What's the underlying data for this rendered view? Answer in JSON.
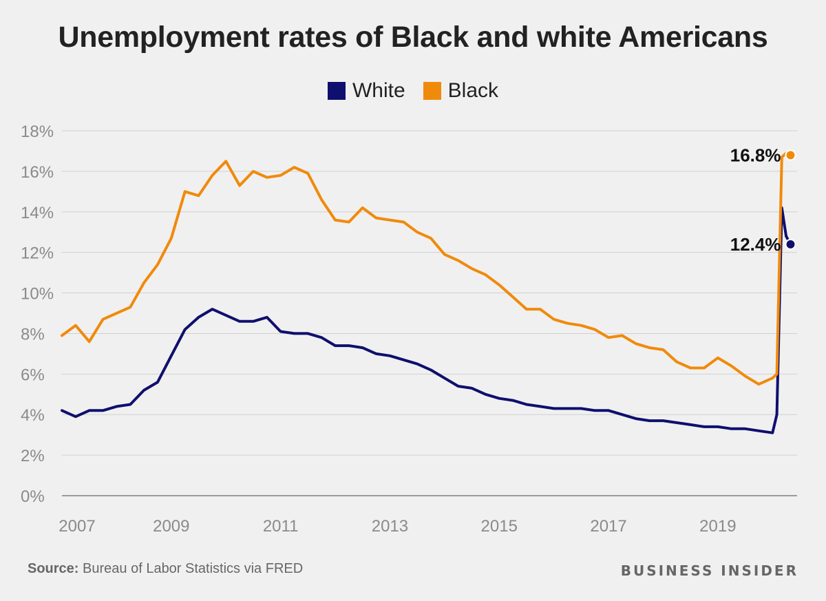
{
  "title": "Unemployment rates of Black and white Americans",
  "source_label": "Source:",
  "source_text": "Bureau of Labor Statistics via FRED",
  "brand": "BUSINESS INSIDER",
  "colors": {
    "white": "#0f0f6e",
    "black": "#f08a0b",
    "grid": "#cfcfcf",
    "axis_text": "#8a8a8a"
  },
  "chart_data": {
    "type": "line",
    "title": "Unemployment rates of Black and white Americans",
    "xlabel": "",
    "ylabel": "",
    "x_range": [
      2007.0,
      2020.33
    ],
    "ylim": [
      0,
      18
    ],
    "y_ticks": [
      0,
      2,
      4,
      6,
      8,
      10,
      12,
      14,
      16,
      18
    ],
    "y_tick_labels": [
      "0%",
      "2%",
      "4%",
      "6%",
      "8%",
      "10%",
      "12%",
      "14%",
      "16%",
      "18%"
    ],
    "x_ticks": [
      2007,
      2009,
      2011,
      2013,
      2015,
      2017,
      2019
    ],
    "x_tick_labels": [
      "2007",
      "2009",
      "2011",
      "2013",
      "2015",
      "2017",
      "2019"
    ],
    "grid": true,
    "legend_position": "top-center",
    "series": [
      {
        "name": "White",
        "color": "#0f0f6e",
        "x": [
          2007.0,
          2007.25,
          2007.5,
          2007.75,
          2008.0,
          2008.25,
          2008.5,
          2008.75,
          2009.0,
          2009.25,
          2009.5,
          2009.75,
          2010.0,
          2010.25,
          2010.5,
          2010.75,
          2011.0,
          2011.25,
          2011.5,
          2011.75,
          2012.0,
          2012.25,
          2012.5,
          2012.75,
          2013.0,
          2013.25,
          2013.5,
          2013.75,
          2014.0,
          2014.25,
          2014.5,
          2014.75,
          2015.0,
          2015.25,
          2015.5,
          2015.75,
          2016.0,
          2016.25,
          2016.5,
          2016.75,
          2017.0,
          2017.25,
          2017.5,
          2017.75,
          2018.0,
          2018.25,
          2018.5,
          2018.75,
          2019.0,
          2019.25,
          2019.5,
          2019.75,
          2020.0,
          2020.08,
          2020.17,
          2020.25,
          2020.33
        ],
        "values": [
          4.2,
          3.9,
          4.2,
          4.2,
          4.4,
          4.5,
          5.2,
          5.6,
          6.9,
          8.2,
          8.8,
          9.2,
          8.9,
          8.6,
          8.6,
          8.8,
          8.1,
          8.0,
          8.0,
          7.8,
          7.4,
          7.4,
          7.3,
          7.0,
          6.9,
          6.7,
          6.5,
          6.2,
          5.8,
          5.4,
          5.3,
          5.0,
          4.8,
          4.7,
          4.5,
          4.4,
          4.3,
          4.3,
          4.3,
          4.2,
          4.2,
          4.0,
          3.8,
          3.7,
          3.7,
          3.6,
          3.5,
          3.4,
          3.4,
          3.3,
          3.3,
          3.2,
          3.1,
          4.0,
          14.2,
          12.8,
          12.4
        ]
      },
      {
        "name": "Black",
        "color": "#f08a0b",
        "x": [
          2007.0,
          2007.25,
          2007.5,
          2007.75,
          2008.0,
          2008.25,
          2008.5,
          2008.75,
          2009.0,
          2009.25,
          2009.5,
          2009.75,
          2010.0,
          2010.25,
          2010.5,
          2010.75,
          2011.0,
          2011.25,
          2011.5,
          2011.75,
          2012.0,
          2012.25,
          2012.5,
          2012.75,
          2013.0,
          2013.25,
          2013.5,
          2013.75,
          2014.0,
          2014.25,
          2014.5,
          2014.75,
          2015.0,
          2015.25,
          2015.5,
          2015.75,
          2016.0,
          2016.25,
          2016.5,
          2016.75,
          2017.0,
          2017.25,
          2017.5,
          2017.75,
          2018.0,
          2018.25,
          2018.5,
          2018.75,
          2019.0,
          2019.25,
          2019.5,
          2019.75,
          2020.0,
          2020.08,
          2020.17,
          2020.25,
          2020.33
        ],
        "values": [
          7.9,
          8.4,
          7.6,
          8.7,
          9.0,
          9.3,
          10.5,
          11.4,
          12.7,
          15.0,
          14.8,
          15.8,
          16.5,
          15.3,
          16.0,
          15.7,
          15.8,
          16.2,
          15.9,
          14.6,
          13.6,
          13.5,
          14.2,
          13.7,
          13.6,
          13.5,
          13.0,
          12.7,
          11.9,
          11.6,
          11.2,
          10.9,
          10.4,
          9.8,
          9.2,
          9.2,
          8.7,
          8.5,
          8.4,
          8.2,
          7.8,
          7.9,
          7.5,
          7.3,
          7.2,
          6.6,
          6.3,
          6.3,
          6.8,
          6.4,
          5.9,
          5.5,
          5.8,
          6.0,
          16.7,
          16.9,
          16.8
        ]
      }
    ],
    "annotations": [
      {
        "series": "Black",
        "x": 2020.33,
        "y": 16.8,
        "text": "16.8%"
      },
      {
        "series": "White",
        "x": 2020.33,
        "y": 12.4,
        "text": "12.4%"
      }
    ]
  }
}
